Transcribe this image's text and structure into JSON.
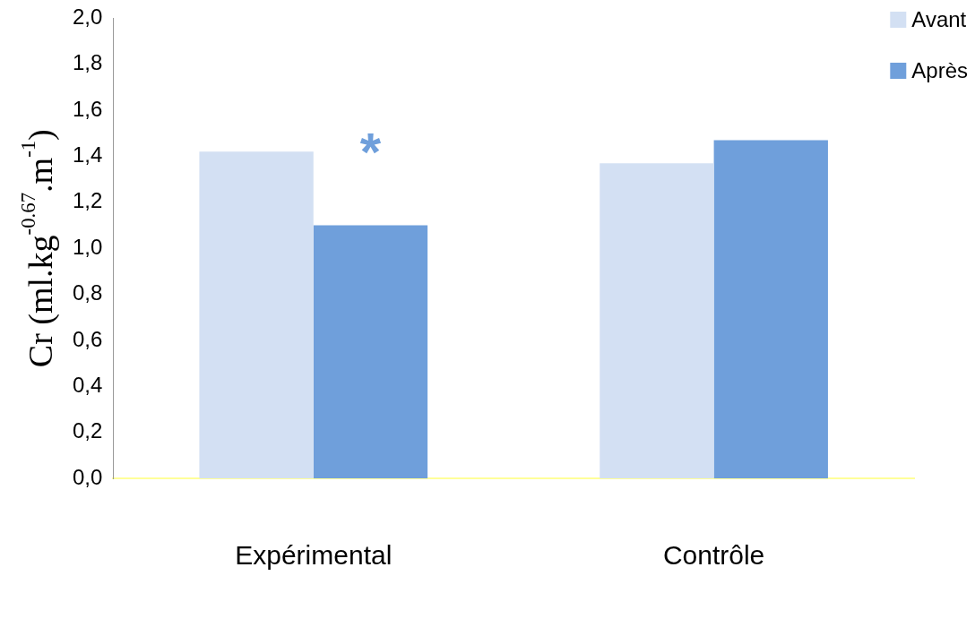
{
  "chart_data": {
    "type": "bar",
    "ylabel": "Cr (ml.kg$^{-0.67}$.m$^{-1}$)",
    "categories": [
      "Expérimental",
      "Contrôle"
    ],
    "series": [
      {
        "name": "Avant",
        "color": "#d3e0f3",
        "values": [
          1.42,
          1.37
        ]
      },
      {
        "name": "Après",
        "color": "#6f9fdb",
        "values": [
          1.1,
          1.47
        ]
      }
    ],
    "ylim": [
      0,
      2
    ],
    "yticks": [
      {
        "value": 0,
        "label": "0,0"
      },
      {
        "value": 0.2,
        "label": "0,2"
      },
      {
        "value": 0.4,
        "label": "0,4"
      },
      {
        "value": 0.6,
        "label": "0,6"
      },
      {
        "value": 0.8,
        "label": "0,8"
      },
      {
        "value": 1,
        "label": "1,0"
      },
      {
        "value": 1.2,
        "label": "1,2"
      },
      {
        "value": 1.4,
        "label": "1,4"
      },
      {
        "value": 1.6,
        "label": "1,6"
      },
      {
        "value": 1.8,
        "label": "1,8"
      },
      {
        "value": 2,
        "label": "2,0"
      }
    ],
    "annotations": [
      "*"
    ],
    "grid": false,
    "legend": "top right"
  }
}
